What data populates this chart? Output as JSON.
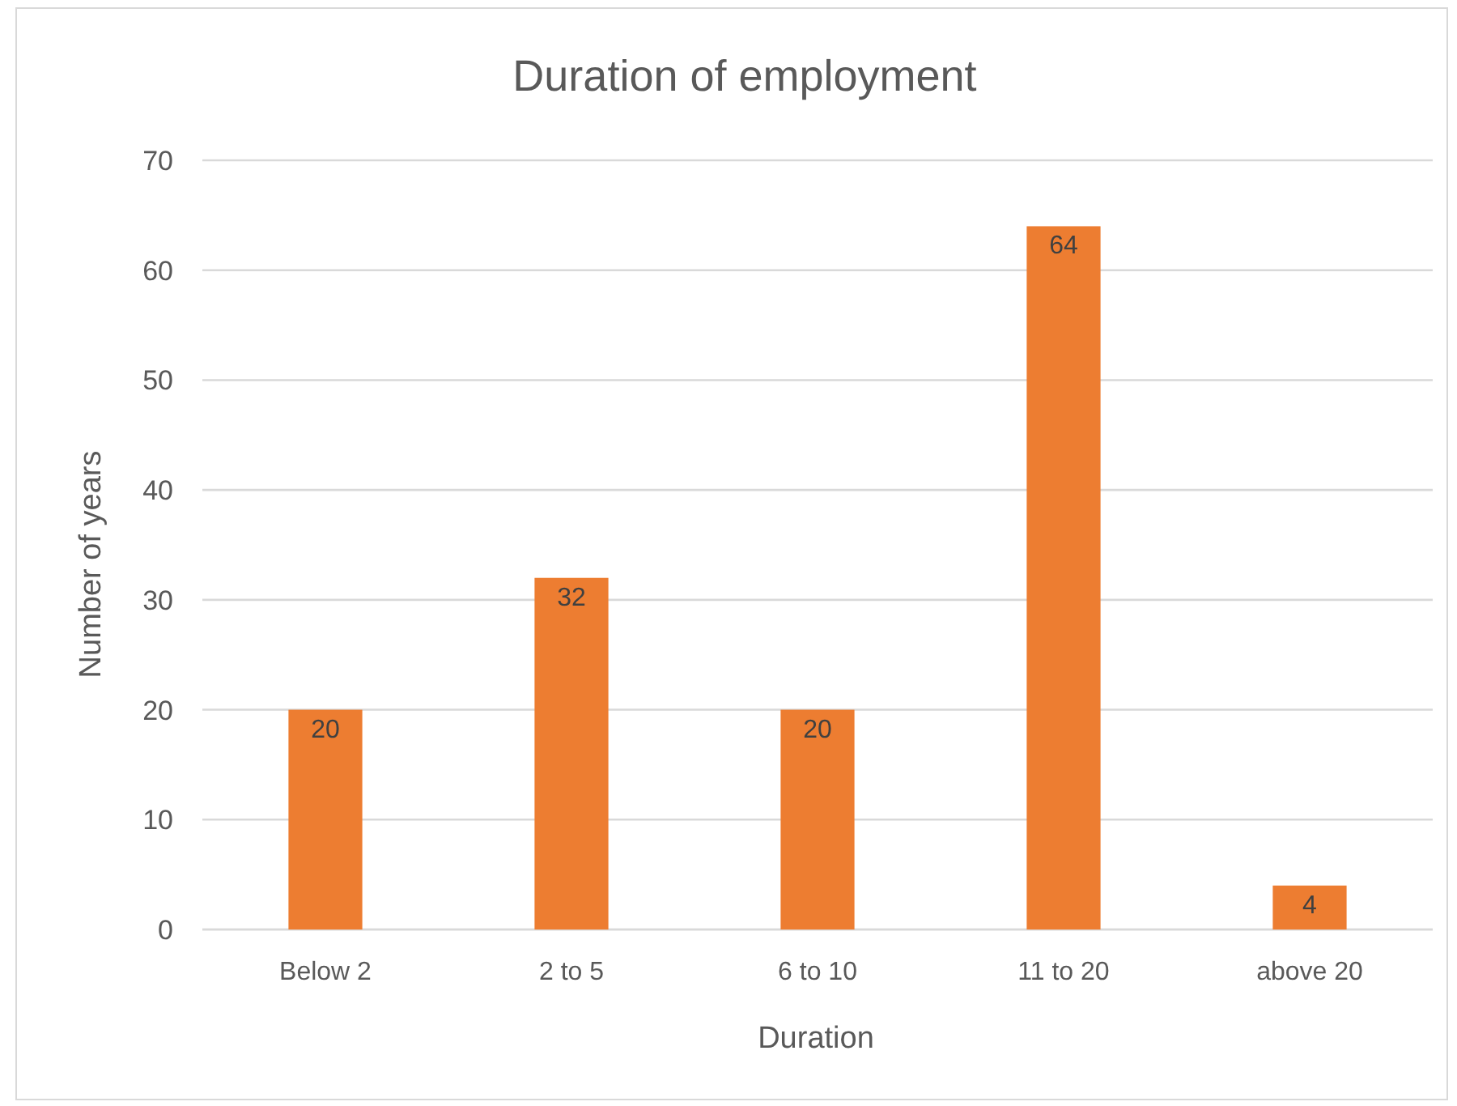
{
  "chart_data": {
    "type": "bar",
    "title": "Duration of employment",
    "xlabel": "Duration",
    "ylabel": "Number of years",
    "categories": [
      "Below 2",
      "2 to 5",
      "6 to 10",
      "11 to 20",
      "above 20"
    ],
    "values": [
      20,
      32,
      20,
      64,
      4
    ],
    "color": "#ed7d31",
    "ylim": [
      0,
      70
    ],
    "yticks": [
      0,
      10,
      20,
      30,
      40,
      50,
      60,
      70
    ],
    "grid": "y",
    "data_labels": true
  }
}
